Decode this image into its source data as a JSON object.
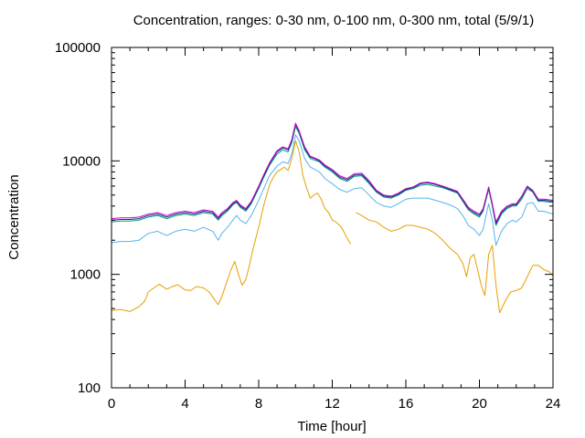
{
  "chart_data": {
    "type": "line",
    "title": "Concentration, ranges: 0-30 nm, 0-100 nm, 0-300 nm, total (5/9/1)",
    "xlabel": "Time [hour]",
    "ylabel": "Concentration",
    "x_ticks": [
      0,
      4,
      8,
      12,
      16,
      20,
      24
    ],
    "y_ticks": [
      100,
      1000,
      10000,
      100000
    ],
    "y_tick_labels": [
      "100",
      "1000",
      "10000",
      "100000"
    ],
    "xlim": [
      0,
      24
    ],
    "ylim": [
      100,
      100000
    ],
    "y_scale": "log",
    "grid": false,
    "legend": "none",
    "series": [
      {
        "color": "#e69f00",
        "x": [
          0,
          0.5,
          1,
          1.2,
          1.5,
          1.8,
          2,
          2.3,
          2.6,
          3,
          3.3,
          3.6,
          4,
          4.3,
          4.6,
          5,
          5.3,
          5.6,
          5.8,
          6,
          6.2,
          6.5,
          6.7,
          6.9,
          7.1,
          7.3,
          7.5,
          7.7,
          8,
          8.3,
          8.6,
          8.8,
          9,
          9.2,
          9.4,
          9.6,
          9.8,
          10,
          10.2,
          10.4,
          10.6,
          10.8,
          11,
          11.2,
          11.4,
          11.6,
          11.8,
          12,
          12.2,
          12.5,
          12.8,
          13.0
        ],
        "y": [
          480,
          490,
          470,
          490,
          520,
          580,
          700,
          760,
          820,
          740,
          780,
          810,
          730,
          720,
          780,
          760,
          700,
          600,
          540,
          640,
          800,
          1100,
          1300,
          1000,
          800,
          900,
          1200,
          1700,
          2600,
          4200,
          6200,
          7200,
          8000,
          8400,
          8800,
          8200,
          10500,
          15000,
          12000,
          7500,
          5800,
          4700,
          5000,
          5200,
          4600,
          3800,
          3500,
          3000,
          2900,
          2600,
          2100,
          1850
        ],
        "x2": [
          13.3,
          13.6,
          14,
          14.4,
          14.8,
          15.2,
          15.6,
          16,
          16.4,
          16.8,
          17.2,
          17.6,
          18,
          18.4,
          18.8,
          19.1,
          19.3,
          19.5,
          19.7,
          19.9,
          20.1,
          20.3,
          20.5,
          20.7,
          20.9,
          21.1,
          21.4,
          21.7,
          22,
          22.3,
          22.6,
          22.9,
          23.2,
          23.5,
          23.8,
          24
        ],
        "y2": [
          3500,
          3300,
          3000,
          2900,
          2600,
          2400,
          2500,
          2700,
          2700,
          2600,
          2500,
          2300,
          2000,
          1700,
          1500,
          1250,
          950,
          1400,
          1500,
          1100,
          800,
          650,
          1500,
          1800,
          800,
          460,
          580,
          700,
          720,
          760,
          950,
          1200,
          1200,
          1100,
          1050,
          980
        ]
      },
      {
        "color": "#56b4e9",
        "x": [
          0,
          0.5,
          1,
          1.5,
          2,
          2.5,
          3,
          3.5,
          4,
          4.5,
          5,
          5.5,
          5.8,
          6,
          6.3,
          6.6,
          6.8,
          7,
          7.3,
          7.6,
          8,
          8.3,
          8.6,
          9,
          9.3,
          9.6,
          9.8,
          10,
          10.2,
          10.5,
          10.8,
          11,
          11.3,
          11.6,
          12,
          12.4,
          12.8,
          13.2,
          13.6,
          14,
          14.4,
          14.8,
          15.2,
          15.6,
          16,
          16.4,
          16.8,
          17.2,
          17.6,
          18,
          18.4,
          18.8,
          19.1,
          19.4,
          19.7,
          20,
          20.2,
          20.5,
          20.7,
          20.9,
          21.2,
          21.5,
          21.8,
          22,
          22.3,
          22.6,
          22.9,
          23.2,
          23.5,
          24
        ],
        "y": [
          1900,
          1950,
          1950,
          2000,
          2300,
          2400,
          2200,
          2400,
          2500,
          2400,
          2600,
          2400,
          2000,
          2300,
          2600,
          3000,
          3300,
          3000,
          2800,
          3300,
          4500,
          5800,
          7500,
          9000,
          9800,
          9500,
          11500,
          17000,
          15000,
          10500,
          8800,
          8500,
          8000,
          7000,
          6300,
          5600,
          5300,
          5700,
          5800,
          5000,
          4300,
          4000,
          3900,
          4200,
          4600,
          4700,
          4700,
          4700,
          4500,
          4300,
          4100,
          3800,
          3300,
          2700,
          2500,
          2200,
          2500,
          4200,
          3000,
          1800,
          2400,
          2800,
          3000,
          2900,
          3200,
          4200,
          4300,
          3600,
          3600,
          3400
        ]
      },
      {
        "color": "#009e73",
        "x": [
          0,
          0.5,
          1,
          1.5,
          2,
          2.5,
          3,
          3.5,
          4,
          4.5,
          5,
          5.5,
          5.8,
          6,
          6.3,
          6.6,
          6.8,
          7,
          7.3,
          7.6,
          8,
          8.3,
          8.6,
          9,
          9.3,
          9.6,
          9.8,
          10,
          10.2,
          10.5,
          10.8,
          11,
          11.3,
          11.6,
          12,
          12.4,
          12.8,
          13.2,
          13.6,
          14,
          14.4,
          14.8,
          15.2,
          15.6,
          16,
          16.4,
          16.8,
          17.2,
          17.6,
          18,
          18.4,
          18.8,
          19.1,
          19.4,
          19.7,
          20,
          20.2,
          20.5,
          20.7,
          20.9,
          21.2,
          21.5,
          21.8,
          22,
          22.3,
          22.6,
          22.9,
          23.2,
          23.5,
          24
        ],
        "y": [
          2900,
          2950,
          2950,
          3000,
          3200,
          3300,
          3100,
          3300,
          3400,
          3300,
          3500,
          3400,
          3000,
          3300,
          3600,
          4100,
          4300,
          3900,
          3600,
          4200,
          5700,
          7300,
          9200,
          11500,
          12500,
          12000,
          14500,
          20000,
          17500,
          12500,
          10500,
          10200,
          9800,
          8800,
          8000,
          7000,
          6600,
          7300,
          7400,
          6300,
          5300,
          4800,
          4700,
          5000,
          5500,
          5700,
          6100,
          6200,
          6000,
          5800,
          5500,
          5200,
          4400,
          3700,
          3400,
          3200,
          3600,
          5600,
          4000,
          2700,
          3400,
          3800,
          4000,
          4000,
          4600,
          5700,
          5300,
          4400,
          4400,
          4300
        ]
      },
      {
        "color": "#0b2d8c",
        "x": [
          0,
          0.5,
          1,
          1.5,
          2,
          2.5,
          3,
          3.5,
          4,
          4.5,
          5,
          5.5,
          5.8,
          6,
          6.3,
          6.6,
          6.8,
          7,
          7.3,
          7.6,
          8,
          8.3,
          8.6,
          9,
          9.3,
          9.6,
          9.8,
          10,
          10.2,
          10.5,
          10.8,
          11,
          11.3,
          11.6,
          12,
          12.4,
          12.8,
          13.2,
          13.6,
          14,
          14.4,
          14.8,
          15.2,
          15.6,
          16,
          16.4,
          16.8,
          17.2,
          17.6,
          18,
          18.4,
          18.8,
          19.1,
          19.4,
          19.7,
          20,
          20.2,
          20.5,
          20.7,
          20.9,
          21.2,
          21.5,
          21.8,
          22,
          22.3,
          22.6,
          22.9,
          23.2,
          23.5,
          24
        ],
        "y": [
          3000,
          3050,
          3050,
          3100,
          3300,
          3400,
          3200,
          3400,
          3500,
          3400,
          3600,
          3500,
          3100,
          3400,
          3700,
          4200,
          4400,
          4000,
          3700,
          4300,
          5900,
          7500,
          9500,
          12000,
          13000,
          12500,
          15000,
          21000,
          18000,
          13000,
          10800,
          10500,
          10000,
          9000,
          8200,
          7200,
          6800,
          7500,
          7600,
          6500,
          5400,
          4900,
          4800,
          5100,
          5600,
          5800,
          6300,
          6400,
          6200,
          5900,
          5600,
          5300,
          4500,
          3800,
          3500,
          3300,
          3700,
          5800,
          4100,
          2800,
          3500,
          3900,
          4100,
          4100,
          4800,
          5900,
          5400,
          4500,
          4500,
          4400
        ]
      },
      {
        "color": "#cc00cc",
        "x": [
          0,
          0.5,
          1,
          1.5,
          2,
          2.5,
          3,
          3.5,
          4,
          4.5,
          5,
          5.5,
          5.8,
          6,
          6.3,
          6.6,
          6.8,
          7,
          7.3,
          7.6,
          8,
          8.3,
          8.6,
          9,
          9.3,
          9.6,
          9.8,
          10,
          10.2,
          10.5,
          10.8,
          11,
          11.3,
          11.6,
          12,
          12.4,
          12.8,
          13.2,
          13.6,
          14,
          14.4,
          14.8,
          15.2,
          15.6,
          16,
          16.4,
          16.8,
          17.2,
          17.6,
          18,
          18.4,
          18.8,
          19.1,
          19.4,
          19.7,
          20,
          20.2,
          20.5,
          20.7,
          20.9,
          21.2,
          21.5,
          21.8,
          22,
          22.3,
          22.6,
          22.9,
          23.2,
          23.5,
          24
        ],
        "y": [
          3100,
          3150,
          3150,
          3200,
          3400,
          3500,
          3300,
          3500,
          3600,
          3500,
          3700,
          3600,
          3200,
          3500,
          3800,
          4300,
          4500,
          4100,
          3800,
          4400,
          6000,
          7700,
          9700,
          12300,
          13300,
          12800,
          15400,
          21500,
          18400,
          13300,
          11000,
          10700,
          10200,
          9200,
          8400,
          7400,
          7000,
          7700,
          7800,
          6700,
          5500,
          5000,
          4900,
          5200,
          5700,
          5900,
          6400,
          6500,
          6300,
          6000,
          5700,
          5400,
          4600,
          3900,
          3600,
          3400,
          3800,
          5900,
          4200,
          2900,
          3600,
          4000,
          4200,
          4200,
          4900,
          6000,
          5500,
          4600,
          4600,
          4500
        ]
      }
    ]
  }
}
